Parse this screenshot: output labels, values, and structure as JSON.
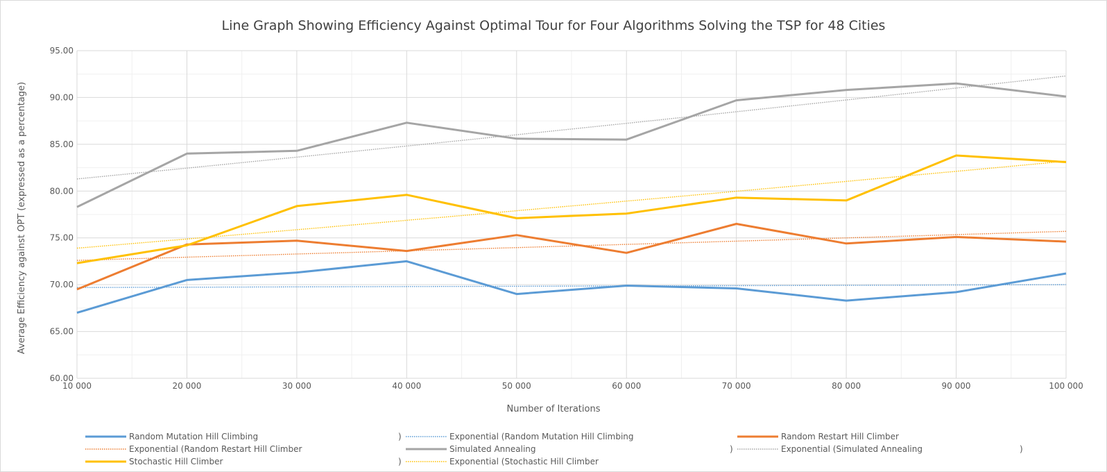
{
  "chart_data": {
    "type": "line",
    "title": "Line Graph Showing Efficiency Against Optimal Tour for Four Algorithms Solving the TSP for 48 Cities",
    "xlabel": "Number of Iterations",
    "ylabel": "Average Efficiency against OPT (expressed as a percentage)",
    "x": [
      10000,
      20000,
      30000,
      40000,
      50000,
      60000,
      70000,
      80000,
      90000,
      100000
    ],
    "x_tick_labels": [
      "10 000",
      "20 000",
      "30 000",
      "40 000",
      "50 000",
      "60 000",
      "70 000",
      "80 000",
      "90 000",
      "100 000"
    ],
    "ylim": [
      60,
      95
    ],
    "y_ticks": [
      60,
      65,
      70,
      75,
      80,
      85,
      90,
      95
    ],
    "y_tick_labels": [
      "60.00",
      "65.00",
      "70.00",
      "75.00",
      "80.00",
      "85.00",
      "90.00",
      "95.00"
    ],
    "grid": true,
    "legend_position": "bottom",
    "series": [
      {
        "name": "Random Mutation Hill Climbing",
        "color": "#5b9bd5",
        "values": [
          67.0,
          70.5,
          71.3,
          72.5,
          69.0,
          69.9,
          69.6,
          68.3,
          69.2,
          71.2
        ]
      },
      {
        "name": "Random Restart Hill Climber",
        "color": "#ed7d31",
        "values": [
          69.5,
          74.3,
          74.7,
          73.6,
          75.3,
          73.4,
          76.5,
          74.4,
          75.1,
          74.6
        ]
      },
      {
        "name": "Simulated Annealing",
        "color": "#a5a5a5",
        "values": [
          78.3,
          84.0,
          84.3,
          87.3,
          85.6,
          85.5,
          89.7,
          90.8,
          91.5,
          90.1
        ]
      },
      {
        "name": "Stochastic Hill Climber",
        "color": "#ffc000",
        "values": [
          72.3,
          74.2,
          78.4,
          79.6,
          77.1,
          77.6,
          79.3,
          79.0,
          83.8,
          83.1
        ]
      }
    ],
    "trendlines": [
      {
        "name": "Exponential (Random Mutation Hill Climbing",
        "close": ")",
        "color": "#5b9bd5",
        "type": "exponential",
        "start": 69.7,
        "end": 70.0
      },
      {
        "name": "Exponential (Random Restart Hill Climber",
        "close": ")",
        "color": "#ed7d31",
        "type": "exponential",
        "start": 72.6,
        "end": 75.7
      },
      {
        "name": "Exponential (Simulated Annealing",
        "close": ")",
        "color": "#a5a5a5",
        "type": "exponential",
        "start": 81.3,
        "end": 92.3
      },
      {
        "name": "Exponential (Stochastic Hill Climber",
        "close": ")",
        "color": "#ffc000",
        "type": "exponential",
        "start": 73.9,
        "end": 83.2
      }
    ]
  }
}
